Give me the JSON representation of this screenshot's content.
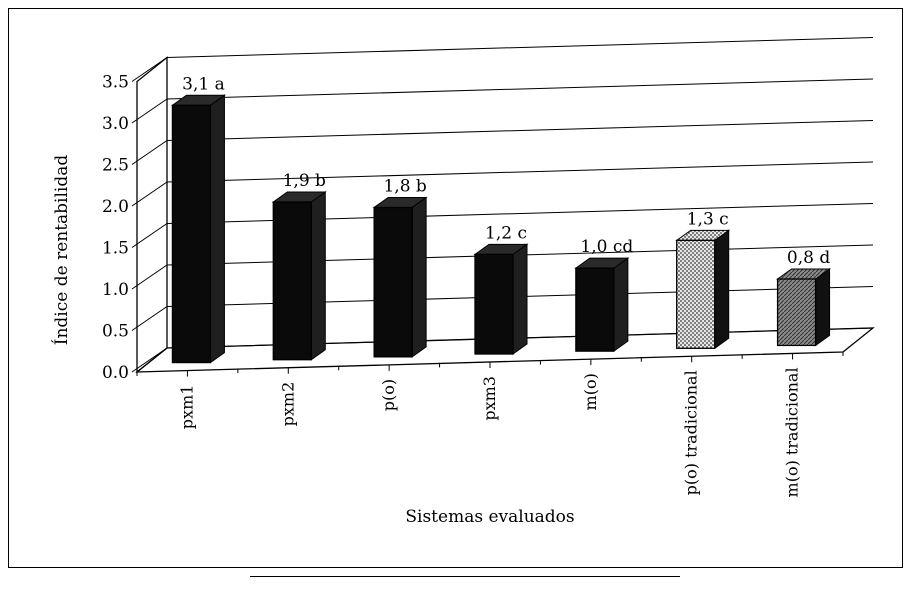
{
  "chart_data": {
    "type": "bar",
    "categories": [
      "pxm1",
      "pxm2",
      "p(o)",
      "pxm3",
      "m(o)",
      "p(o) tradicional",
      "m(o) tradicional"
    ],
    "values": [
      3.1,
      1.9,
      1.8,
      1.2,
      1.0,
      1.3,
      0.8
    ],
    "data_labels": [
      "3,1 a",
      "1,9 b",
      "1,8 b",
      "1,2 c",
      "1,0 cd",
      "1,3 c",
      "0,8 d"
    ],
    "fill_styles": [
      "solid",
      "solid",
      "solid",
      "solid",
      "solid",
      "dotted",
      "hatched"
    ],
    "colors": {
      "bar": "#0a0a0a",
      "dotted": "#bdbdbd",
      "hatched": "#6a6a6a"
    },
    "title": "",
    "xlabel": "Sistemas evaluados",
    "ylabel": "Índice de rentabilidad",
    "yticks": [
      "0.0",
      "0.5",
      "1.0",
      "1.5",
      "2.0",
      "2.5",
      "3.0",
      "3.5"
    ],
    "ylim": [
      0,
      3.5
    ],
    "grid": true,
    "view": "3d"
  }
}
